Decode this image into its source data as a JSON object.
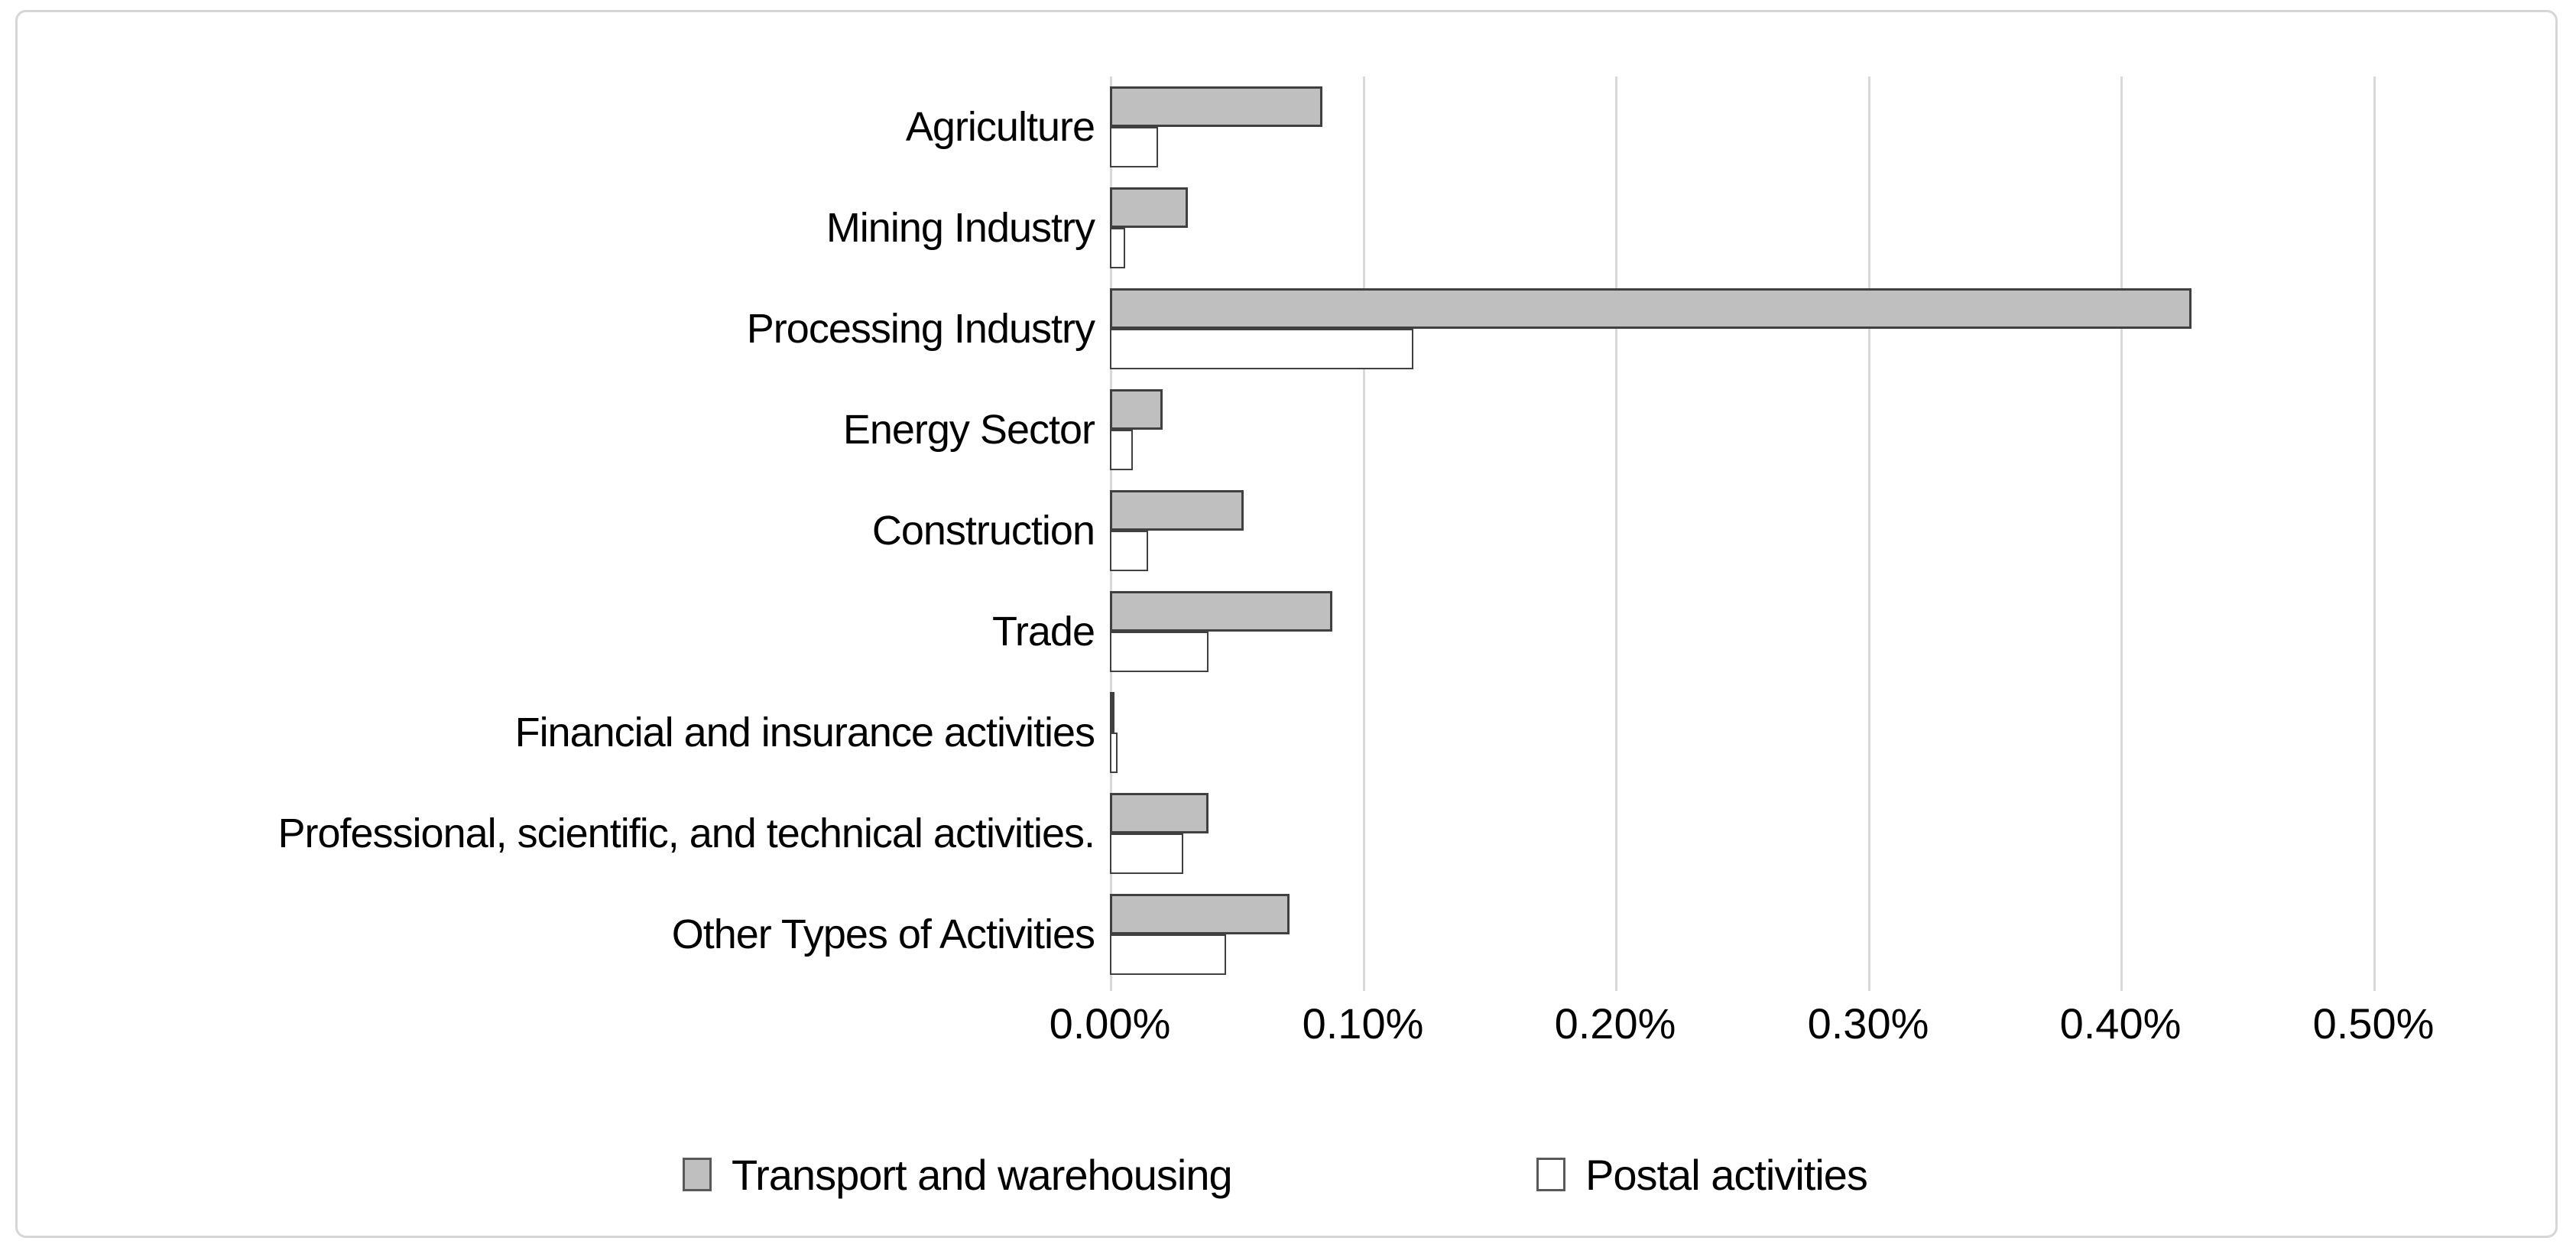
{
  "chart_data": {
    "type": "bar",
    "orientation": "horizontal",
    "title": "",
    "categories": [
      "Agriculture",
      "Mining Industry",
      "Processing Industry",
      "Energy Sector",
      "Construction",
      "Trade",
      "Financial and insurance activities",
      "Professional, scientific, and technical activities.",
      "Other Types of Activities"
    ],
    "series": [
      {
        "name": "Transport and warehousing",
        "fill": "#bfbfbf",
        "border": "#404040",
        "values_percent": [
          0.084,
          0.031,
          0.428,
          0.021,
          0.053,
          0.088,
          0.0015,
          0.039,
          0.071
        ]
      },
      {
        "name": "Postal activities",
        "fill": "#ffffff",
        "border": "#404040",
        "values_percent": [
          0.019,
          0.006,
          0.12,
          0.009,
          0.015,
          0.039,
          0.003,
          0.029,
          0.046
        ]
      }
    ],
    "x_axis": {
      "min": 0,
      "max": 0.5,
      "step": 0.1,
      "unit": "%",
      "tick_labels": [
        "0.00%",
        "0.10%",
        "0.20%",
        "0.30%",
        "0.40%",
        "0.50%"
      ]
    },
    "grid": true,
    "gridline_color": "#d9d9d9",
    "legend_position": "bottom"
  }
}
